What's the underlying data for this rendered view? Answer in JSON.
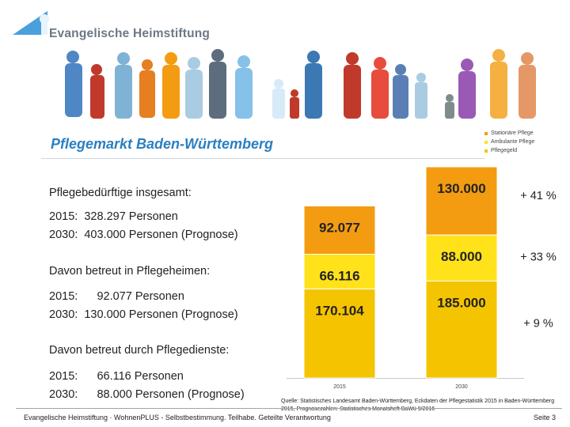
{
  "brand": {
    "name": "Evangelische Heimstiftung"
  },
  "title": "Pflegemarkt Baden-Württemberg",
  "text": {
    "total_heading": "Pflegebedürftige insgesamt:",
    "total_2015": "2015:  328.297 Personen",
    "total_2030": "2030:  403.000 Personen (Prognose)",
    "homes_heading": "Davon betreut in Pflegeheimen:",
    "homes_2015": "2015:      92.077 Personen",
    "homes_2030": "2030:  130.000 Personen (Prognose)",
    "services_heading": "Davon betreut durch Pflegedienste:",
    "services_2015": "2015:      66.116 Personen",
    "services_2030": "2030:      88.000 Personen (Prognose)"
  },
  "chart_data": {
    "type": "bar",
    "stacked": true,
    "categories": [
      "2015",
      "2030"
    ],
    "series": [
      {
        "name": "Pflegegeld",
        "values": [
          170104,
          185000
        ],
        "labels": [
          "170.104",
          "185.000"
        ],
        "color": "#f5c400"
      },
      {
        "name": "Ambulante Pflege",
        "values": [
          66116,
          88000
        ],
        "labels": [
          "66.116",
          "88.000"
        ],
        "color": "#ffe21a"
      },
      {
        "name": "Stationäre Pflege",
        "values": [
          92077,
          130000
        ],
        "labels": [
          "92.077",
          "130.000"
        ],
        "color": "#f39c12"
      }
    ],
    "annotations": [
      "+ 41 %",
      "+ 33 %",
      "+ 9 %"
    ],
    "legend_position": "top-right",
    "grid": false
  },
  "source": "Quelle: Statistisches Landesamt Baden-Württemberg, Eckdaten der Pflegestatistik 2015 in Baden-Württemberg 2015, Prognosezahlen: Statistisches Monatsheft BaWü 9/2016",
  "footer": {
    "text": "Evangelische Heimstiftung · WohnenPLUS - Selbstbestimmung. Teilhabe. Geteilte Verantwortung",
    "page": "Seite 3"
  }
}
